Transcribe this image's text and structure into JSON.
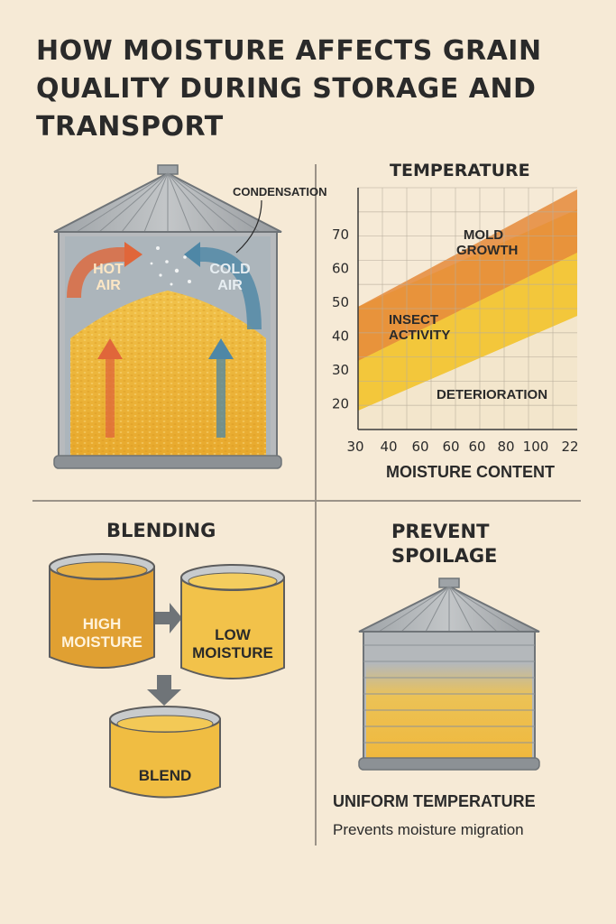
{
  "title": "HOW MOISTURE AFFECTS GRAIN QUALITY DURING STORAGE AND TRANSPORT",
  "silo_panel": {
    "condensation_label": "CONDENSATION",
    "hot_air_label_1": "HOT",
    "hot_air_label_2": "AIR",
    "cold_air_label_1": "COLD",
    "cold_air_label_2": "AIR"
  },
  "chart_data": {
    "type": "area",
    "title": "TEMPERATURE",
    "xlabel": "MOISTURE CONTENT",
    "x_tick_labels": [
      "30",
      "40",
      "60",
      "60",
      "60",
      "80",
      "100",
      "22"
    ],
    "y_tick_labels": [
      "70",
      "60",
      "50",
      "40",
      "30",
      "20"
    ],
    "grid": true,
    "zones": [
      {
        "name": "MOLD GROWTH",
        "name_line1": "MOLD",
        "name_line2": "GROWTH",
        "color": "#e58a3a"
      },
      {
        "name": "INSECT ACTIVITY",
        "name_line1": "INSECT",
        "name_line2": "ACTIVITY",
        "color": "#f3c73b"
      },
      {
        "name": "DETERIORATION",
        "name_line1": "DETERIORATION",
        "name_line2": "",
        "color": "#f3e6cc"
      }
    ]
  },
  "blending_panel": {
    "title": "BLENDING",
    "high_label_1": "HIGH",
    "high_label_2": "MOISTURE",
    "low_label_1": "LOW",
    "low_label_2": "MOISTURE",
    "blend_label": "BLEND"
  },
  "spoilage_panel": {
    "title_1": "PREVENT",
    "title_2": "SPOILAGE",
    "subtitle": "UNIFORM TEMPERATURE",
    "caption": "Prevents moisture migration"
  },
  "colors": {
    "background": "#f6ead6",
    "silo_metal": "#a9acaf",
    "grain": "#f0b93a",
    "hot_arrow": "#e0663a",
    "cold_arrow": "#4e87a6"
  }
}
